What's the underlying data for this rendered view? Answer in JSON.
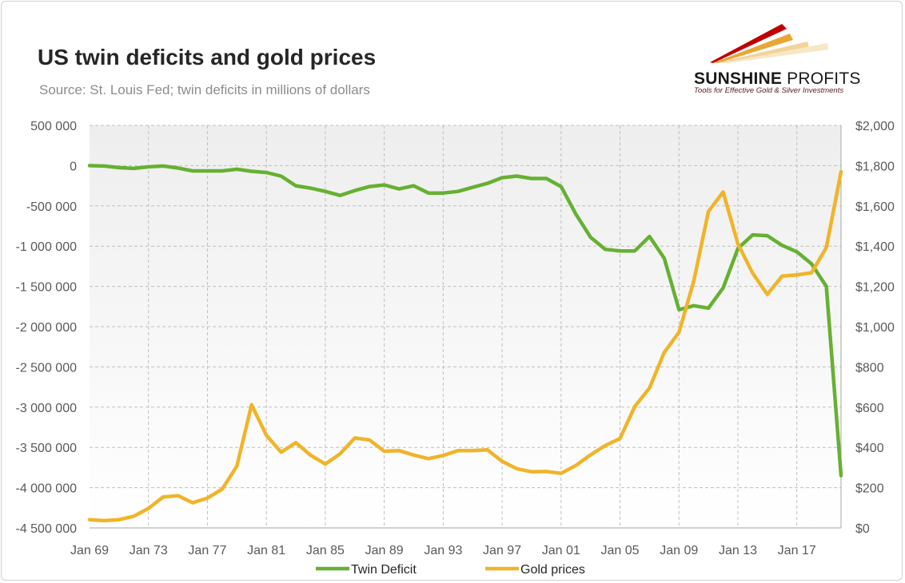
{
  "colors": {
    "twin_deficit": "#66b032",
    "gold_prices": "#f0b429",
    "grid": "#bfbfbf",
    "logo_red": "#c00000",
    "logo_gold": "#e8a735"
  },
  "logo": {
    "name_bold": "SUNSHINE",
    "name_thin": "PROFITS",
    "tagline": "Tools for Effective Gold & Silver Investments"
  },
  "chart_data": {
    "type": "line",
    "title": "US twin deficits and gold prices",
    "subtitle": "Source: St. Louis Fed; twin deficits in millions of dollars",
    "x_years": [
      1969,
      1970,
      1971,
      1972,
      1973,
      1974,
      1975,
      1976,
      1977,
      1978,
      1979,
      1980,
      1981,
      1982,
      1983,
      1984,
      1985,
      1986,
      1987,
      1988,
      1989,
      1990,
      1991,
      1992,
      1993,
      1994,
      1995,
      1996,
      1997,
      1998,
      1999,
      2000,
      2001,
      2002,
      2003,
      2004,
      2005,
      2006,
      2007,
      2008,
      2009,
      2010,
      2011,
      2012,
      2013,
      2014,
      2015,
      2016,
      2017,
      2018,
      2019,
      2020
    ],
    "x_tick_years": [
      1969,
      1973,
      1977,
      1981,
      1985,
      1989,
      1993,
      1997,
      2001,
      2005,
      2009,
      2013,
      2017
    ],
    "x_tick_labels": [
      "Jan 69",
      "Jan 73",
      "Jan 77",
      "Jan 81",
      "Jan 85",
      "Jan 89",
      "Jan 93",
      "Jan 97",
      "Jan 01",
      "Jan 05",
      "Jan 09",
      "Jan 13",
      "Jan 17"
    ],
    "y_left": {
      "min": -4500000,
      "max": 500000,
      "step": 500000,
      "tick_values": [
        500000,
        0,
        -500000,
        -1000000,
        -1500000,
        -2000000,
        -2500000,
        -3000000,
        -3500000,
        -4000000,
        -4500000
      ],
      "tick_labels": [
        "500 000",
        "0",
        "-500 000",
        "-1 000 000",
        "-1 500 000",
        "-2 000 000",
        "-2 500 000",
        "-3 000 000",
        "-3 500 000",
        "-4 000 000",
        "-4 500 000"
      ]
    },
    "y_right": {
      "min": 0,
      "max": 2000,
      "step": 200,
      "tick_values": [
        2000,
        1800,
        1600,
        1400,
        1200,
        1000,
        800,
        600,
        400,
        200,
        0
      ],
      "tick_labels": [
        "$2,000",
        "$1,800",
        "$1,600",
        "$1,400",
        "$1,200",
        "$1,000",
        "$800",
        "$600",
        "$400",
        "$200",
        "$0"
      ]
    },
    "series": [
      {
        "name": "Twin Deficit",
        "axis": "left",
        "values": [
          0,
          -5000,
          -25000,
          -35000,
          -15000,
          -5000,
          -30000,
          -65000,
          -65000,
          -65000,
          -45000,
          -70000,
          -85000,
          -130000,
          -250000,
          -280000,
          -320000,
          -370000,
          -310000,
          -260000,
          -240000,
          -290000,
          -250000,
          -340000,
          -340000,
          -320000,
          -270000,
          -220000,
          -150000,
          -130000,
          -160000,
          -160000,
          -260000,
          -600000,
          -890000,
          -1040000,
          -1060000,
          -1060000,
          -880000,
          -1150000,
          -1790000,
          -1740000,
          -1770000,
          -1520000,
          -1030000,
          -860000,
          -870000,
          -990000,
          -1070000,
          -1220000,
          -1500000,
          -3850000
        ]
      },
      {
        "name": "Gold prices",
        "axis": "right",
        "values": [
          41,
          36,
          41,
          58,
          97,
          154,
          160,
          125,
          148,
          193,
          307,
          612,
          460,
          376,
          424,
          361,
          317,
          368,
          447,
          437,
          381,
          384,
          362,
          344,
          360,
          384,
          384,
          388,
          331,
          294,
          279,
          280,
          271,
          310,
          363,
          409,
          444,
          603,
          695,
          872,
          972,
          1225,
          1572,
          1669,
          1411,
          1266,
          1160,
          1251,
          1257,
          1268,
          1393,
          1770
        ]
      }
    ],
    "legend": [
      "Twin Deficit",
      "Gold prices"
    ],
    "legend_position": "bottom",
    "grid": true
  }
}
